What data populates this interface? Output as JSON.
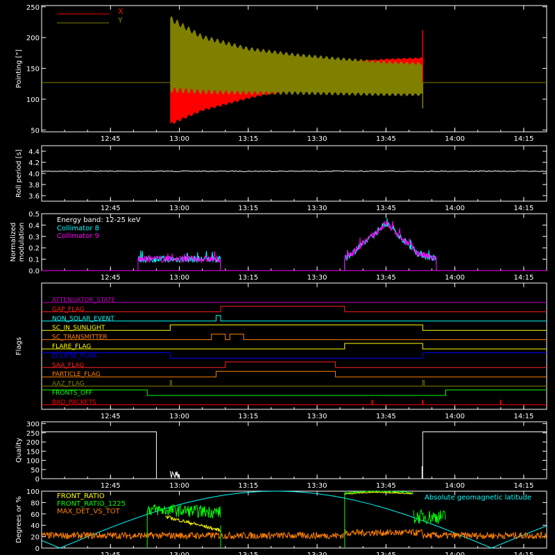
{
  "time_ticks": [
    "12:45",
    "13:00",
    "13:15",
    "13:30",
    "13:45",
    "14:00",
    "14:15"
  ],
  "time_range": [
    "12:30",
    "14:20"
  ],
  "colors": {
    "axis": "#ffffff",
    "x_series": "#ff0000",
    "y_series": "#808000",
    "cyan": "#00ffff",
    "magenta": "#ff00ff",
    "green": "#00ff00",
    "yellow": "#ffff00",
    "orange": "#ff8000",
    "blue": "#0000ff",
    "gray": "#c0c0c0"
  },
  "chart_data": [
    {
      "id": "pointing",
      "type": "line",
      "ylabel": "Pointing [\"]",
      "ylim": [
        47,
        252
      ],
      "yticks": [
        50,
        100,
        150,
        200,
        250
      ],
      "legend_placement": "top-left",
      "series": [
        {
          "name": "X",
          "color": "#ff0000",
          "baseline": 127,
          "active": [
            "12:58",
            "13:53"
          ],
          "envelope_upper": [
            [
              "12:58",
              120
            ],
            [
              "13:05",
              127
            ],
            [
              "13:15",
              140
            ],
            [
              "13:25",
              152
            ],
            [
              "13:35",
              160
            ],
            [
              "13:45",
              166
            ],
            [
              "13:53",
              168
            ]
          ],
          "envelope_lower": [
            [
              "12:58",
              57
            ],
            [
              "13:05",
              80
            ],
            [
              "13:15",
              100
            ],
            [
              "13:25",
              116
            ],
            [
              "13:35",
              130
            ],
            [
              "13:45",
              140
            ],
            [
              "13:53",
              142
            ]
          ],
          "spike": [
            "13:53",
            212
          ]
        },
        {
          "name": "Y",
          "color": "#808000",
          "baseline": 127,
          "active": [
            "12:58",
            "13:53"
          ],
          "envelope_upper": [
            [
              "12:58",
              236
            ],
            [
              "13:05",
              205
            ],
            [
              "13:15",
              185
            ],
            [
              "13:25",
              175
            ],
            [
              "13:35",
              168
            ],
            [
              "13:45",
              162
            ],
            [
              "13:53",
              160
            ]
          ],
          "envelope_lower": [
            [
              "12:58",
              110
            ],
            [
              "13:05",
              108
            ],
            [
              "13:15",
              107
            ],
            [
              "13:25",
              107
            ],
            [
              "13:35",
              106
            ],
            [
              "13:45",
              105
            ],
            [
              "13:53",
              105
            ]
          ],
          "spike": [
            "13:53",
            85
          ]
        }
      ]
    },
    {
      "id": "roll_period",
      "type": "line",
      "ylabel": "Roll period [s]",
      "ylim": [
        3.5,
        4.5
      ],
      "yticks": [
        3.6,
        3.8,
        4.0,
        4.2,
        4.4
      ],
      "series": [
        {
          "color": "#ffffff",
          "level": 4.04
        }
      ]
    },
    {
      "id": "modulation",
      "type": "line",
      "ylabel": "Normalized modulation",
      "ylim": [
        0,
        0.5
      ],
      "yticks": [
        0.0,
        0.1,
        0.2,
        0.3,
        0.4,
        0.5
      ],
      "annotation": "Energy band: 12-25 keV",
      "series": [
        {
          "name": "Collimator 8",
          "color": "#00ffff",
          "segments": [
            [
              [
                "12:51",
                0.1
              ],
              [
                "13:09",
                0.1
              ]
            ],
            [
              [
                "13:36",
                0.1
              ],
              [
                "13:42",
                0.3
              ],
              [
                "13:45",
                0.42
              ],
              [
                "13:48",
                0.3
              ],
              [
                "13:52",
                0.15
              ],
              [
                "13:56",
                0.1
              ]
            ]
          ]
        },
        {
          "name": "Collimator 9",
          "color": "#ff00ff",
          "segments": [
            [
              [
                "12:51",
                0.1
              ],
              [
                "13:09",
                0.1
              ]
            ],
            [
              [
                "13:36",
                0.1
              ],
              [
                "13:42",
                0.3
              ],
              [
                "13:45",
                0.42
              ],
              [
                "13:48",
                0.3
              ],
              [
                "13:52",
                0.15
              ],
              [
                "13:56",
                0.1
              ]
            ]
          ]
        }
      ]
    },
    {
      "id": "flags",
      "type": "line",
      "ylabel": "Flags",
      "flags": [
        {
          "name": "ATTENUATOR_STATE",
          "color": "#c000c0",
          "lvl": 0,
          "on": []
        },
        {
          "name": "GAP_FLAG",
          "color": "#ff2020",
          "lvl": 0,
          "on": [
            [
              "13:09",
              "13:36"
            ]
          ]
        },
        {
          "name": "NON_SOLAR_EVENT",
          "color": "#00ffff",
          "lvl": 0,
          "on": [
            [
              "13:08",
              "13:09"
            ]
          ]
        },
        {
          "name": "SC_IN_SUNLIGHT",
          "color": "#ffff00",
          "lvl": 1,
          "on": [
            [
              "12:58",
              "13:53"
            ]
          ]
        },
        {
          "name": "SC_TRANSMITTER",
          "color": "#ff8000",
          "lvl": 0,
          "on": [
            [
              "13:07",
              "13:10"
            ],
            [
              "13:11",
              "13:14"
            ]
          ]
        },
        {
          "name": "FLARE_FLAG",
          "color": "#ffff00",
          "lvl": 0,
          "on": [
            [
              "13:36",
              "13:53"
            ]
          ]
        },
        {
          "name": "ECLIPSE_FLAG",
          "color": "#0000ff",
          "lvl": 1,
          "on": [
            [
              "12:58",
              "13:53"
            ]
          ],
          "invert": true
        },
        {
          "name": "SAA_FLAG",
          "color": "#ff2020",
          "lvl": 0,
          "on": [
            [
              "13:10",
              "13:34"
            ]
          ]
        },
        {
          "name": "PARTICLE_FLAG",
          "color": "#ff8000",
          "lvl": 0,
          "on": [
            [
              "13:08",
              "13:34"
            ]
          ]
        },
        {
          "name": "AAZ_FLAG",
          "color": "#808000",
          "lvl": 0,
          "on": [
            [
              "12:58",
              "12:58"
            ],
            [
              "13:53",
              "13:53"
            ]
          ]
        },
        {
          "name": "FRONTS_OFF",
          "color": "#00ff00",
          "lvl": 1,
          "on": [
            [
              "12:53",
              "13:58"
            ]
          ],
          "invert": true
        },
        {
          "name": "BAD_PACKETS",
          "color": "#ff0000",
          "lvl": 0,
          "on": [],
          "ticks": [
            "13:42",
            "13:53",
            "14:10"
          ]
        }
      ]
    },
    {
      "id": "quality",
      "type": "line",
      "ylabel": "Quality",
      "ylim": [
        0,
        310
      ],
      "yticks": [
        0,
        50,
        100,
        150,
        200,
        250,
        300
      ],
      "series": [
        {
          "color": "#ffffff",
          "high": 255,
          "low_between": [
            "12:55",
            "13:53"
          ]
        }
      ]
    },
    {
      "id": "front_ratios",
      "type": "line",
      "ylabel": "Degrees or %",
      "ylim": [
        0,
        100
      ],
      "yticks": [
        0,
        20,
        40,
        60,
        80,
        100
      ],
      "annotation": "Absolute geomagnetic latitude",
      "series": [
        {
          "name": "FRONT_RATIO",
          "color": "#ffff00"
        },
        {
          "name": "FRONT_RATIO_1225",
          "color": "#00ff00"
        },
        {
          "name": "MAX_DET_VS_TOT",
          "color": "#ff8000"
        },
        {
          "name": "Absolute geomagnetic latitude",
          "color": "#00ffff"
        }
      ]
    }
  ]
}
